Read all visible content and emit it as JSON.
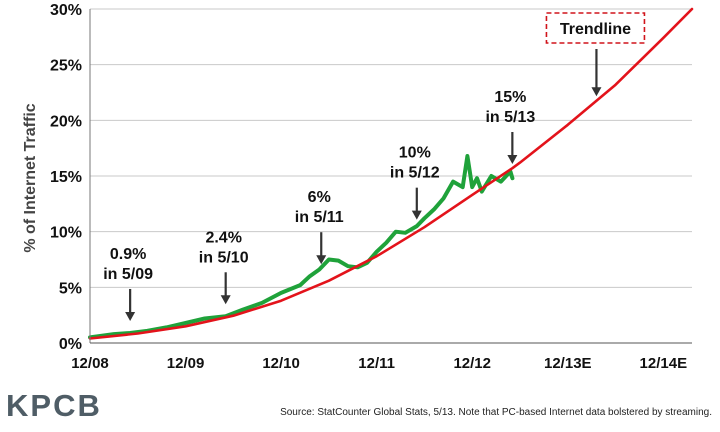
{
  "chart_data": {
    "type": "line",
    "title": "",
    "ylabel": "% of Internet Traffic",
    "xlabel": "",
    "xlim": [
      0,
      6.3
    ],
    "ylim": [
      0,
      30
    ],
    "x_ticks": [
      {
        "value": 0,
        "label": "12/08"
      },
      {
        "value": 1,
        "label": "12/09"
      },
      {
        "value": 2,
        "label": "12/10"
      },
      {
        "value": 3,
        "label": "12/11"
      },
      {
        "value": 4,
        "label": "12/12"
      },
      {
        "value": 5,
        "label": "12/13E"
      },
      {
        "value": 6,
        "label": "12/14E"
      }
    ],
    "y_ticks": [
      {
        "value": 0,
        "label": "0%"
      },
      {
        "value": 5,
        "label": "5%"
      },
      {
        "value": 10,
        "label": "10%"
      },
      {
        "value": 15,
        "label": "15%"
      },
      {
        "value": 20,
        "label": "20%"
      },
      {
        "value": 25,
        "label": "25%"
      },
      {
        "value": 30,
        "label": "30%"
      }
    ],
    "grid": true,
    "series": [
      {
        "name": "",
        "color": "#1fa23a",
        "x": [
          0,
          0.25,
          0.42,
          0.6,
          0.8,
          1.0,
          1.2,
          1.42,
          1.6,
          1.8,
          2.0,
          2.2,
          2.3,
          2.4,
          2.5,
          2.6,
          2.7,
          2.8,
          2.9,
          3.0,
          3.1,
          3.2,
          3.3,
          3.42,
          3.5,
          3.6,
          3.7,
          3.8,
          3.9,
          3.95,
          4.0,
          4.05,
          4.1,
          4.2,
          4.3,
          4.4,
          4.42
        ],
        "y": [
          0.5,
          0.8,
          0.9,
          1.1,
          1.4,
          1.8,
          2.2,
          2.4,
          3.0,
          3.6,
          4.5,
          5.2,
          6.0,
          6.6,
          7.5,
          7.4,
          6.9,
          6.8,
          7.2,
          8.2,
          9.0,
          10.0,
          9.9,
          10.5,
          11.2,
          12.0,
          13.0,
          14.5,
          14.0,
          16.8,
          14.0,
          14.8,
          13.6,
          15.0,
          14.5,
          15.4,
          14.8
        ]
      },
      {
        "name": "Trendline",
        "color": "#e3131b",
        "x": [
          0,
          0.5,
          1,
          1.5,
          2,
          2.5,
          3,
          3.5,
          4,
          4.42,
          4.5,
          5,
          5.5,
          6,
          6.3
        ],
        "y": [
          0.4,
          0.85,
          1.5,
          2.45,
          3.8,
          5.6,
          7.8,
          10.4,
          13.3,
          15.7,
          16.2,
          19.6,
          23.2,
          27.4,
          30
        ]
      }
    ],
    "annotations": [
      {
        "value_line1": "0.9%",
        "value_line2": "in 5/09",
        "x": 0.42,
        "y": 0.9
      },
      {
        "value_line1": "2.4%",
        "value_line2": "in 5/10",
        "x": 1.42,
        "y": 2.4
      },
      {
        "value_line1": "6%",
        "value_line2": "in 5/11",
        "x": 2.42,
        "y": 6.0
      },
      {
        "value_line1": "10%",
        "value_line2": "in 5/12",
        "x": 3.42,
        "y": 10.0
      },
      {
        "value_line1": "15%",
        "value_line2": "in 5/13",
        "x": 4.42,
        "y": 15.0
      }
    ],
    "trend_label": "Trendline",
    "trend_label_point": {
      "x": 5.3,
      "y": 21.8
    }
  },
  "footer": {
    "logo": "KPCB",
    "source": "Source: StatCounter Global Stats, 5/13. Note that PC-based Internet data bolstered by streaming."
  }
}
